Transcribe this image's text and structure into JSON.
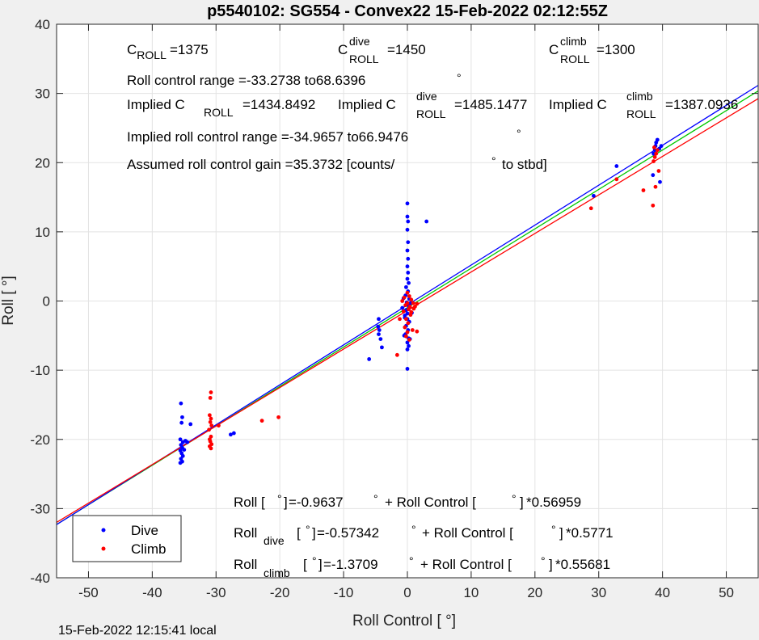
{
  "title": "p5540102: SG554 - Convex22 15-Feb-2022 02:12:55Z",
  "footer": "15-Feb-2022 12:15:41 local",
  "chart_data": {
    "type": "scatter",
    "xlabel": "Roll Control [   °]",
    "ylabel": "Roll [  °]",
    "xlim": [
      -55,
      55
    ],
    "ylim": [
      -40,
      40
    ],
    "xticks": [
      -50,
      -40,
      -30,
      -20,
      -10,
      0,
      10,
      20,
      30,
      40,
      50
    ],
    "yticks": [
      -40,
      -30,
      -20,
      -10,
      0,
      10,
      20,
      30,
      40
    ],
    "grid": true,
    "legend_position": "bottom-left",
    "legend": [
      {
        "name": "Dive",
        "color": "#0000ff"
      },
      {
        "name": "Climb",
        "color": "#ff0000"
      }
    ],
    "series": [
      {
        "name": "Dive",
        "color": "#0000ff",
        "points": [
          [
            -35.5,
            -14.8
          ],
          [
            -35.3,
            -16.8
          ],
          [
            -35.4,
            -17.6
          ],
          [
            -35.6,
            -20.0
          ],
          [
            -35.2,
            -20.4
          ],
          [
            -35.5,
            -20.8
          ],
          [
            -35.3,
            -21.2
          ],
          [
            -35.6,
            -21.6
          ],
          [
            -35.4,
            -22.0
          ],
          [
            -35.2,
            -22.4
          ],
          [
            -35.5,
            -22.8
          ],
          [
            -35.3,
            -23.2
          ],
          [
            -35.6,
            -23.4
          ],
          [
            -35.0,
            -21.5
          ],
          [
            -34.8,
            -20.2
          ],
          [
            -34.5,
            -20.4
          ],
          [
            -34.0,
            -17.8
          ],
          [
            -27.7,
            -19.3
          ],
          [
            -27.2,
            -19.1
          ],
          [
            -6.0,
            -8.4
          ],
          [
            -4.5,
            -2.6
          ],
          [
            -4.6,
            -3.7
          ],
          [
            -4.4,
            -4.2
          ],
          [
            -4.5,
            -4.8
          ],
          [
            -4.2,
            -5.5
          ],
          [
            -4.0,
            -6.7
          ],
          [
            0.0,
            14.1
          ],
          [
            0.0,
            12.2
          ],
          [
            0.1,
            11.5
          ],
          [
            0.0,
            10.3
          ],
          [
            0.1,
            8.5
          ],
          [
            0.0,
            7.3
          ],
          [
            0.1,
            6.1
          ],
          [
            0.0,
            5.0
          ],
          [
            0.1,
            4.1
          ],
          [
            0.0,
            3.2
          ],
          [
            0.2,
            2.6
          ],
          [
            -0.2,
            2.0
          ],
          [
            0.1,
            1.4
          ],
          [
            -0.3,
            0.8
          ],
          [
            0.3,
            0.3
          ],
          [
            -0.1,
            -0.2
          ],
          [
            0.2,
            -0.7
          ],
          [
            -0.2,
            -1.3
          ],
          [
            0.0,
            -1.8
          ],
          [
            -0.4,
            -2.4
          ],
          [
            0.3,
            -3.0
          ],
          [
            -0.2,
            -3.6
          ],
          [
            0.1,
            -4.2
          ],
          [
            -0.3,
            -4.8
          ],
          [
            0.2,
            -5.4
          ],
          [
            0.0,
            -6.0
          ],
          [
            0.2,
            -6.5
          ],
          [
            0.0,
            -7.0
          ],
          [
            0.0,
            -9.8
          ],
          [
            -0.6,
            0.4
          ],
          [
            0.5,
            -0.3
          ],
          [
            -0.8,
            -1.0
          ],
          [
            0.7,
            -1.7
          ],
          [
            0.0,
            -2.6
          ],
          [
            -0.5,
            -5.0
          ],
          [
            0.4,
            -5.5
          ],
          [
            -0.4,
            -2.1
          ],
          [
            3.0,
            11.5
          ],
          [
            29.2,
            15.2
          ],
          [
            32.8,
            19.5
          ],
          [
            38.5,
            18.2
          ],
          [
            38.6,
            21.3
          ],
          [
            38.8,
            21.8
          ],
          [
            38.9,
            22.4
          ],
          [
            39.0,
            22.9
          ],
          [
            39.2,
            23.3
          ],
          [
            39.5,
            22.0
          ],
          [
            39.8,
            22.4
          ],
          [
            39.6,
            17.2
          ]
        ]
      },
      {
        "name": "Climb",
        "color": "#ff0000",
        "points": [
          [
            -30.8,
            -13.2
          ],
          [
            -30.9,
            -14.0
          ],
          [
            -31.0,
            -16.5
          ],
          [
            -30.8,
            -17.0
          ],
          [
            -30.9,
            -17.5
          ],
          [
            -30.7,
            -18.0
          ],
          [
            -31.1,
            -18.6
          ],
          [
            -30.8,
            -19.6
          ],
          [
            -31.0,
            -20.0
          ],
          [
            -30.9,
            -20.3
          ],
          [
            -30.7,
            -20.7
          ],
          [
            -31.0,
            -21.0
          ],
          [
            -30.8,
            -21.3
          ],
          [
            -29.6,
            -18.0
          ],
          [
            -22.8,
            -17.3
          ],
          [
            -20.2,
            -16.8
          ],
          [
            -1.6,
            -7.8
          ],
          [
            -1.2,
            -2.6
          ],
          [
            0.0,
            1.2
          ],
          [
            0.3,
            0.7
          ],
          [
            0.6,
            0.2
          ],
          [
            0.9,
            -0.3
          ],
          [
            1.2,
            -0.8
          ],
          [
            1.5,
            -0.4
          ],
          [
            -0.3,
            -0.6
          ],
          [
            0.2,
            -1.2
          ],
          [
            -0.6,
            -1.5
          ],
          [
            0.5,
            -2.0
          ],
          [
            -0.2,
            -2.6
          ],
          [
            0.1,
            -3.2
          ],
          [
            -0.4,
            -3.8
          ],
          [
            0.0,
            -4.5
          ],
          [
            -0.2,
            -5.1
          ],
          [
            0.3,
            -5.6
          ],
          [
            0.8,
            -4.2
          ],
          [
            1.5,
            -4.4
          ],
          [
            0.6,
            -1.6
          ],
          [
            1.0,
            -1.1
          ],
          [
            -0.8,
            0.0
          ],
          [
            -0.5,
            0.5
          ],
          [
            0.4,
            -0.8
          ],
          [
            0.0,
            -0.3
          ],
          [
            28.8,
            13.4
          ],
          [
            32.8,
            17.6
          ],
          [
            37.0,
            16.0
          ],
          [
            38.5,
            13.8
          ],
          [
            38.6,
            20.2
          ],
          [
            38.8,
            20.8
          ],
          [
            39.0,
            21.3
          ],
          [
            39.2,
            21.8
          ],
          [
            38.7,
            22.2
          ],
          [
            38.9,
            16.5
          ],
          [
            39.4,
            18.8
          ]
        ]
      }
    ],
    "fit_lines": [
      {
        "name": "Roll",
        "color": "#00c800",
        "intercept": -0.9637,
        "slope": 0.56959
      },
      {
        "name": "Roll dive",
        "color": "#0000ff",
        "intercept": -0.57342,
        "slope": 0.5771
      },
      {
        "name": "Roll climb",
        "color": "#ff0000",
        "intercept": -1.3709,
        "slope": 0.55681
      }
    ],
    "annotations": {
      "c_roll": "=1375",
      "c_roll_dive": "=1450",
      "c_roll_climb": "=1300",
      "roll_control_range": "Roll control range =-33.2738 to68.6396",
      "implied_c_roll": "=1434.8492",
      "implied_c_roll_dive": "=1485.1477",
      "implied_c_roll_climb": "=1387.0936",
      "implied_range": "Implied roll control range =-34.9657 to66.9476",
      "gain": "Assumed roll control gain =35.3732 [counts/",
      "gain_unit": "to stbd]",
      "fit_all": "=-0.9637",
      "fit_all_slope": "*0.56959",
      "fit_dive": "=-0.57342",
      "fit_dive_slope": "*0.5771",
      "fit_climb": "=-1.3709",
      "fit_climb_slope": "*0.55681"
    }
  }
}
